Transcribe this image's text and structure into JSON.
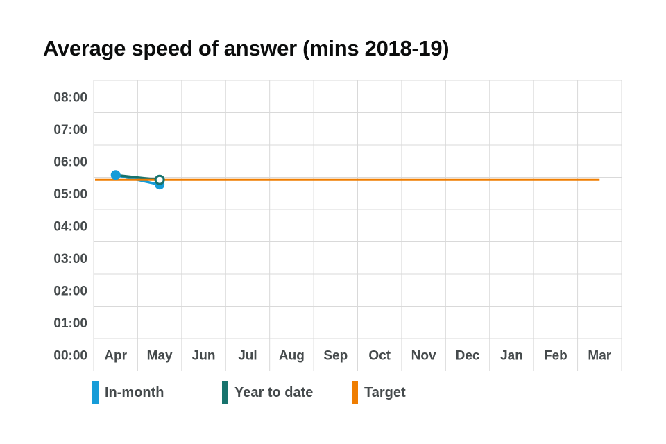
{
  "page": {
    "background": "#ffffff"
  },
  "colors": {
    "grid": "#d9d9d9",
    "axis_text": "#454a4c",
    "title_text": "#0b0c0c",
    "in_month": "#169CD8",
    "year_to_date": "#17736D",
    "target": "#EF7D00"
  },
  "chart_data": {
    "type": "line",
    "title": "Average speed of answer (mins 2018-19)",
    "xlabel": "",
    "ylabel": "",
    "grid": "on",
    "legend_position": "bottom",
    "x_categories": [
      "Apr",
      "May",
      "Jun",
      "Jul",
      "Aug",
      "Sep",
      "Oct",
      "Nov",
      "Dec",
      "Jan",
      "Feb",
      "Mar"
    ],
    "y_axis": {
      "ticks": [
        "08:00",
        "07:00",
        "06:00",
        "05:00",
        "04:00",
        "03:00",
        "02:00",
        "01:00",
        "00:00"
      ],
      "min": 0,
      "max": 8,
      "unit": "minutes (mm:ss)"
    },
    "series": [
      {
        "name": "In-month",
        "color": "#169CD8",
        "line_width": 3.5,
        "points": [
          {
            "x": "Apr",
            "time": "05:34",
            "minutes": 5.57,
            "marker": "filled"
          },
          {
            "x": "May",
            "time": "05:16",
            "minutes": 5.27,
            "marker": "filled"
          }
        ]
      },
      {
        "name": "Year to date",
        "color": "#17736D",
        "line_width": 3.5,
        "points": [
          {
            "x": "Apr",
            "time": "05:34",
            "minutes": 5.57,
            "marker": "none"
          },
          {
            "x": "May",
            "time": "05:25",
            "minutes": 5.42,
            "marker": "open"
          }
        ]
      },
      {
        "name": "Target",
        "color": "#EF7D00",
        "line_width": 3,
        "type": "constant-line",
        "time": "05:25",
        "minutes": 5.42,
        "from": "Apr",
        "to": "Mar"
      }
    ]
  }
}
